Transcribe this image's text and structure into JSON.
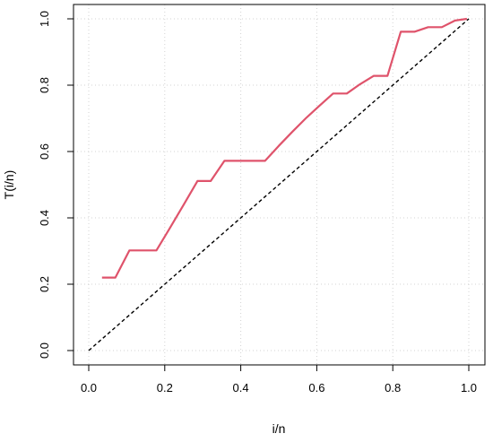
{
  "chart_data": {
    "type": "line",
    "xlabel": "i/n",
    "ylabel": "T(i/n)",
    "xlim": [
      0.0,
      1.0
    ],
    "ylim": [
      0.0,
      1.0
    ],
    "xticks": [
      "0.0",
      "0.2",
      "0.4",
      "0.6",
      "0.8",
      "1.0"
    ],
    "yticks": [
      "0.0",
      "0.2",
      "0.4",
      "0.6",
      "0.8",
      "1.0"
    ],
    "grid": true,
    "series": [
      {
        "style": "solid",
        "color": "#df536b",
        "points": [
          [
            0.035,
            0.22
          ],
          [
            0.07,
            0.22
          ],
          [
            0.107,
            0.302
          ],
          [
            0.178,
            0.302
          ],
          [
            0.214,
            0.37
          ],
          [
            0.25,
            0.44
          ],
          [
            0.286,
            0.511
          ],
          [
            0.321,
            0.511
          ],
          [
            0.357,
            0.572
          ],
          [
            0.464,
            0.572
          ],
          [
            0.5,
            0.617
          ],
          [
            0.536,
            0.66
          ],
          [
            0.571,
            0.7
          ],
          [
            0.607,
            0.738
          ],
          [
            0.643,
            0.775
          ],
          [
            0.679,
            0.775
          ],
          [
            0.714,
            0.803
          ],
          [
            0.75,
            0.828
          ],
          [
            0.786,
            0.828
          ],
          [
            0.821,
            0.961
          ],
          [
            0.857,
            0.961
          ],
          [
            0.893,
            0.975
          ],
          [
            0.929,
            0.975
          ],
          [
            0.964,
            0.995
          ],
          [
            0.995,
            1.0
          ]
        ]
      },
      {
        "style": "dashed",
        "color": "#000000",
        "points": [
          [
            0.0,
            0.0
          ],
          [
            1.0,
            1.0
          ]
        ]
      }
    ]
  }
}
